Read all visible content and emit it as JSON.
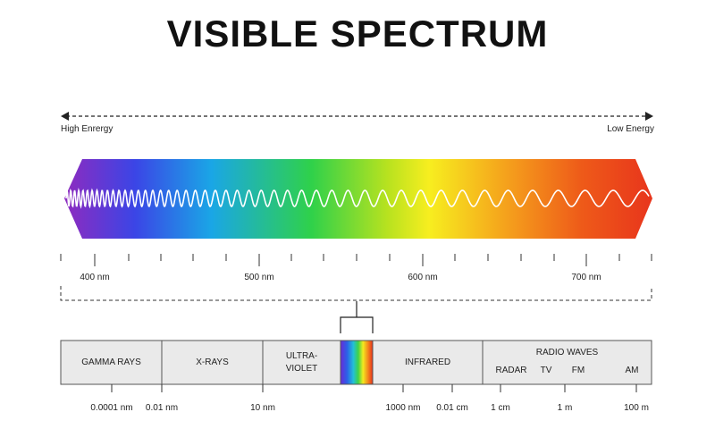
{
  "title": "VISIBLE SPECTRUM",
  "energy": {
    "high": "High Enrergy",
    "low": "Low Energy"
  },
  "wavelength_labels": [
    "400 nm",
    "500 nm",
    "600 nm",
    "700 nm"
  ],
  "bands": {
    "gamma": "GAMMA RAYS",
    "xray": "X-RAYS",
    "uv_line1": "ULTRA-",
    "uv_line2": "VIOLET",
    "infrared": "INFRARED",
    "radio": "RADIO WAVES",
    "radio_sub": [
      "RADAR",
      "TV",
      "FM",
      "AM"
    ]
  },
  "scale_labels": [
    "0.0001 nm",
    "0.01 nm",
    "10 nm",
    "1000 nm",
    "0.01 cm",
    "1 cm",
    "1 m",
    "100 m"
  ],
  "colors": {
    "spectrum": [
      "#8e2bbf",
      "#3b45e6",
      "#1aa6e6",
      "#2fd14a",
      "#b8e21f",
      "#f7ee1f",
      "#f5a21c",
      "#ee5a19",
      "#e8351c"
    ],
    "border": "#555555",
    "band_fill": "#eaeaea"
  }
}
